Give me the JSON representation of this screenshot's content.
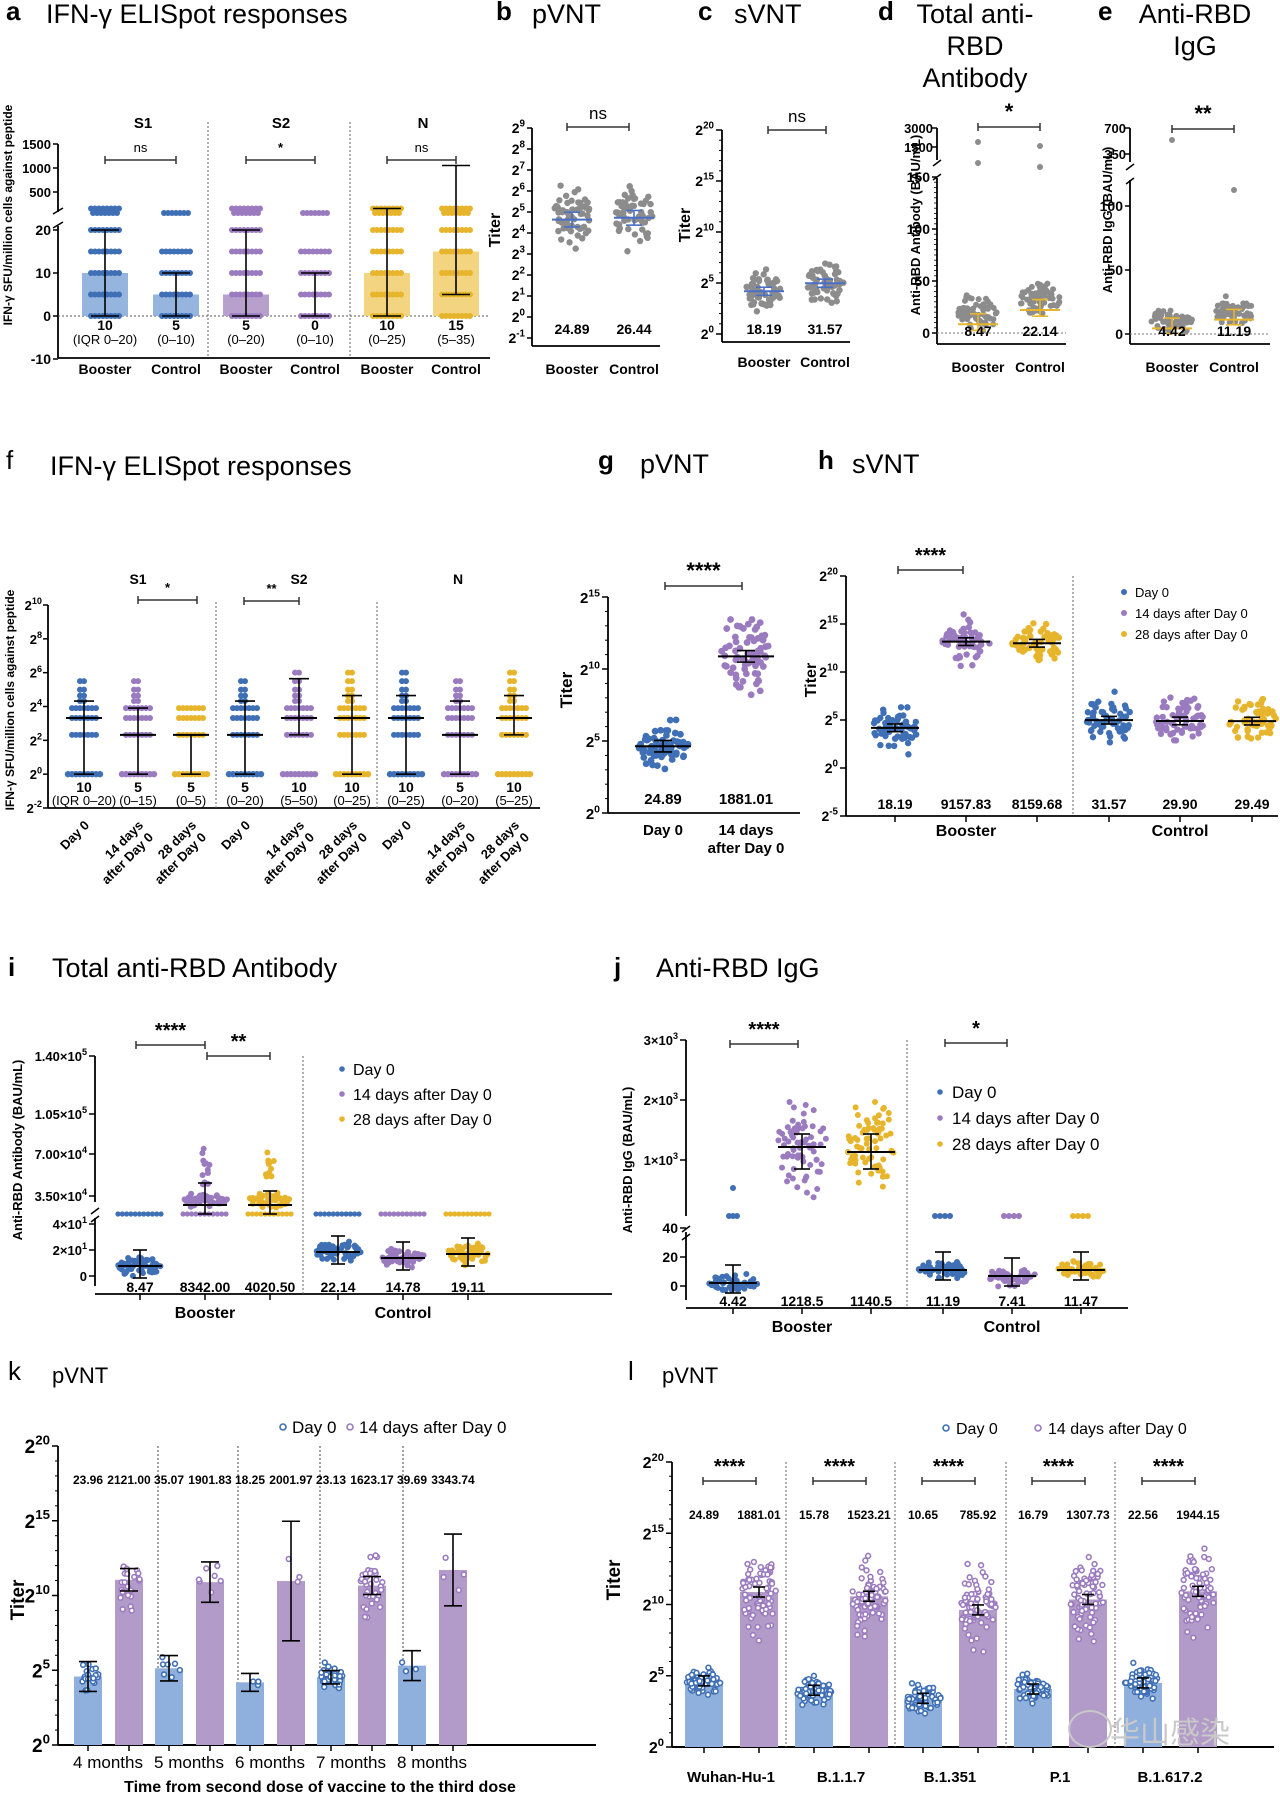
{
  "figure": {
    "colors": {
      "day0": "#3f6fb5",
      "day14": "#9b7bbf",
      "day28": "#e7b52c",
      "grey": "#8c8c8c",
      "bar_blue": "#8fb0dc",
      "bar_purple": "#b39bc9",
      "bar_yellow": "#f2d27a",
      "mean_blue": "#4a6fc4",
      "mean_yellow": "#e7b52c"
    },
    "watermark": "华山感染"
  },
  "panels": {
    "a": {
      "letter": "a",
      "title": "IFN-γ ELISpot responses"
    },
    "b": {
      "letter": "b",
      "title": "pVNT"
    },
    "c": {
      "letter": "c",
      "title": "sVNT"
    },
    "d": {
      "letter": "d",
      "title": "Total anti-RBD Antibody"
    },
    "e": {
      "letter": "e",
      "title": "Anti-RBD IgG"
    },
    "f": {
      "letter": "f",
      "title": "IFN-γ ELISpot responses"
    },
    "g": {
      "letter": "g",
      "title": "pVNT"
    },
    "h": {
      "letter": "h",
      "title": "sVNT"
    },
    "i": {
      "letter": "i",
      "title": "Total anti-RBD Antibody"
    },
    "j": {
      "letter": "j",
      "title": "Anti-RBD IgG"
    },
    "k": {
      "letter": "k",
      "title": "pVNT"
    },
    "l": {
      "letter": "l",
      "title": "pVNT"
    }
  },
  "chart_data": [
    {
      "id": "a",
      "type": "bar",
      "title": "IFN-γ ELISpot responses",
      "ylabel": "IFN-γ SFU/million cells against  peptide",
      "yticks_lower": [
        "-10",
        "0",
        "10",
        "20"
      ],
      "yticks_upper": [
        "500",
        "1000",
        "1500"
      ],
      "ylim_lower": [
        -10,
        25
      ],
      "ylim_upper": [
        0,
        1500
      ],
      "groups": [
        "S1",
        "S2",
        "N"
      ],
      "categories": [
        "Booster",
        "Control",
        "Booster",
        "Control",
        "Booster",
        "Control"
      ],
      "medians": [
        10,
        5,
        5,
        0,
        10,
        15
      ],
      "iqr": [
        [
          0,
          20
        ],
        [
          0,
          10
        ],
        [
          0,
          20
        ],
        [
          0,
          10
        ],
        [
          0,
          25
        ],
        [
          5,
          35
        ]
      ],
      "annotations": [
        "10",
        "5",
        "5",
        "0",
        "10",
        "15"
      ],
      "iqr_labels": [
        "(IQR 0–20)",
        "(0–10)",
        "(0–20)",
        "(0–10)",
        "(0–25)",
        "(5–35)"
      ],
      "significance": [
        "ns",
        "*",
        "ns"
      ],
      "series_colors": [
        "day0",
        "day0",
        "day14",
        "day14",
        "day28",
        "day28"
      ]
    },
    {
      "id": "b",
      "type": "scatter",
      "title": "pVNT",
      "ylabel": "Titer",
      "yscale": "log2",
      "ylim_exp": [
        -1,
        9
      ],
      "yticks": [
        "2^-1",
        "2^0",
        "2^1",
        "2^2",
        "2^3",
        "2^4",
        "2^5",
        "2^6",
        "2^7",
        "2^8",
        "2^9"
      ],
      "categories": [
        "Booster",
        "Control"
      ],
      "geometric_means": [
        24.89,
        26.44
      ],
      "significance": "ns"
    },
    {
      "id": "c",
      "type": "scatter",
      "title": "sVNT",
      "ylabel": "Titer",
      "yscale": "log2",
      "ylim_exp": [
        0,
        20
      ],
      "yticks": [
        "2^0",
        "2^5",
        "2^10",
        "2^15",
        "2^20"
      ],
      "categories": [
        "Booster",
        "Control"
      ],
      "geometric_means": [
        18.19,
        31.57
      ],
      "significance": "ns"
    },
    {
      "id": "d",
      "type": "scatter",
      "title": "Total anti-RBD Antibody",
      "ylabel": "Anti-RBD Antibody (BAU/mL)",
      "yticks_lower": [
        "0",
        "50",
        "100",
        "150"
      ],
      "yticks_upper": [
        "1500",
        "3000"
      ],
      "categories": [
        "Booster",
        "Control"
      ],
      "medians": [
        8.47,
        22.14
      ],
      "significance": "*"
    },
    {
      "id": "e",
      "type": "scatter",
      "title": "Anti-RBD IgG",
      "ylabel": "Anti-RBD IgG (BAU/mL)",
      "yticks_lower": [
        "0",
        "50",
        "100"
      ],
      "yticks_upper": [
        "350",
        "700"
      ],
      "categories": [
        "Booster",
        "Control"
      ],
      "medians": [
        4.42,
        11.19
      ],
      "significance": "**"
    },
    {
      "id": "f",
      "type": "scatter",
      "title": "IFN-γ ELISpot responses",
      "ylabel": "IFN-γ SFU/million cells against  peptide",
      "yscale": "log2",
      "ylim_exp": [
        -2,
        10
      ],
      "yticks": [
        "2^-2",
        "2^0",
        "2^2",
        "2^4",
        "2^6",
        "2^8",
        "2^10"
      ],
      "groups": [
        "S1",
        "S2",
        "N"
      ],
      "categories": [
        "Day 0",
        "14 days after Day 0",
        "28 days after Day 0",
        "Day 0",
        "14 days after Day 0",
        "28 days after Day 0",
        "Day 0",
        "14 days after Day 0",
        "28 days after Day 0"
      ],
      "medians": [
        10,
        5,
        5,
        5,
        10,
        10,
        10,
        5,
        10
      ],
      "annotations": [
        "10",
        "5",
        "5",
        "5",
        "10",
        "10",
        "10",
        "5",
        "10"
      ],
      "iqr_labels": [
        "(IQR 0–20)",
        "(0–15)",
        "(0–5)",
        "(0–20)",
        "(5–50)",
        "(0–25)",
        "(0–25)",
        "(0–20)",
        "(5–25)"
      ],
      "iqr": [
        [
          0,
          20
        ],
        [
          0,
          15
        ],
        [
          0,
          5
        ],
        [
          0,
          20
        ],
        [
          5,
          50
        ],
        [
          0,
          25
        ],
        [
          0,
          25
        ],
        [
          0,
          20
        ],
        [
          5,
          25
        ]
      ],
      "significance": [
        {
          "group": "S1",
          "between": [
            "14 days after Day 0",
            "28 days after Day 0"
          ],
          "label": "*"
        },
        {
          "group": "S2",
          "between": [
            "Day 0",
            "14 days after Day 0"
          ],
          "label": "**"
        }
      ]
    },
    {
      "id": "g",
      "type": "scatter",
      "title": "pVNT",
      "ylabel": "Titer",
      "yscale": "log2",
      "ylim_exp": [
        0,
        15
      ],
      "yticks": [
        "2^0",
        "2^5",
        "2^10",
        "2^15"
      ],
      "categories": [
        "Day 0",
        "14 days after Day 0"
      ],
      "geometric_means": [
        24.89,
        1881.01
      ],
      "significance": "****"
    },
    {
      "id": "h",
      "type": "scatter",
      "title": "sVNT",
      "ylabel": "Titer",
      "yscale": "log2",
      "ylim_exp": [
        -5,
        20
      ],
      "yticks": [
        "2^-5",
        "2^0",
        "2^5",
        "2^10",
        "2^15",
        "2^20"
      ],
      "groups": [
        "Booster",
        "Control"
      ],
      "legend": [
        "Day 0",
        "14 days after Day 0",
        "28 days after Day 0"
      ],
      "legend_position": "top-right",
      "series": [
        {
          "name": "Day 0",
          "booster": 18.19,
          "control": 31.57
        },
        {
          "name": "14 days after Day 0",
          "booster": 9157.83,
          "control": 29.9
        },
        {
          "name": "28 days after Day 0",
          "booster": 8159.68,
          "control": 29.49
        }
      ],
      "value_labels": [
        "18.19",
        "9157.83",
        "8159.68",
        "31.57",
        "29.90",
        "29.49"
      ],
      "significance": "****"
    },
    {
      "id": "i",
      "type": "scatter",
      "title": "Total anti-RBD Antibody",
      "ylabel": "Anti-RBD Antibody (BAU/mL)",
      "yticks_lower": [
        "0",
        "2x10^1",
        "4x10^1"
      ],
      "yticks_upper": [
        "3.50x10^4",
        "7.00x10^4",
        "1.05x10^5",
        "1.40x10^5"
      ],
      "groups": [
        "Booster",
        "Control"
      ],
      "legend": [
        "Day 0",
        "14 days after Day 0",
        "28 days after Day 0"
      ],
      "legend_position": "top-right",
      "value_labels": [
        "8.47",
        "8342.00",
        "4020.50",
        "22.14",
        "14.78",
        "19.11"
      ],
      "significance": [
        "****",
        "**"
      ]
    },
    {
      "id": "j",
      "type": "scatter",
      "title": "Anti-RBD IgG",
      "ylabel": "Anti-RBD IgG (BAU/mL)",
      "yticks_lower": [
        "0",
        "20",
        "40"
      ],
      "yticks_upper": [
        "1x10^3",
        "2x10^3",
        "3x10^3"
      ],
      "groups": [
        "Booster",
        "Control"
      ],
      "legend": [
        "Day 0",
        "14 days after Day 0",
        "28 days after Day 0"
      ],
      "legend_position": "top-right",
      "value_labels": [
        "4.42",
        "1218.5",
        "1140.5",
        "11.19",
        "7.41",
        "11.47"
      ],
      "significance": [
        "****",
        "*"
      ]
    },
    {
      "id": "k",
      "type": "bar",
      "title": "pVNT",
      "ylabel": "Titer",
      "xlabel": "Time from second dose of vaccine to the third dose",
      "yscale": "log2",
      "ylim_exp": [
        0,
        20
      ],
      "yticks": [
        "2^0",
        "2^5",
        "2^10",
        "2^15",
        "2^20"
      ],
      "categories": [
        "4 months",
        "5 months",
        "6 months",
        "7 months",
        "8 months"
      ],
      "legend": [
        "Day 0",
        "14 days after Day 0"
      ],
      "legend_position": "top-right",
      "series": [
        {
          "name": "Day 0",
          "values": [
            23.96,
            35.07,
            18.25,
            23.13,
            39.69
          ]
        },
        {
          "name": "14 days after Day 0",
          "values": [
            2121.0,
            1901.83,
            2001.97,
            1623.17,
            3343.74
          ]
        }
      ],
      "value_labels": [
        "23.96",
        "2121.00",
        "35.07",
        "1901.83",
        "18.25",
        "2001.97",
        "23.13",
        "1623.17",
        "39.69",
        "3343.74"
      ]
    },
    {
      "id": "l",
      "type": "bar",
      "title": "pVNT",
      "ylabel": "Titer",
      "yscale": "log2",
      "ylim_exp": [
        0,
        20
      ],
      "yticks": [
        "2^0",
        "2^5",
        "2^10",
        "2^15",
        "2^20"
      ],
      "categories": [
        "Wuhan-Hu-1",
        "B.1.1.7",
        "B.1.351",
        "P.1",
        "B.1.617.2"
      ],
      "legend": [
        "Day 0",
        "14 days after Day 0"
      ],
      "legend_position": "top-right",
      "series": [
        {
          "name": "Day 0",
          "values": [
            24.89,
            15.78,
            10.65,
            16.79,
            22.56
          ]
        },
        {
          "name": "14 days after Day 0",
          "values": [
            1881.01,
            1523.21,
            785.92,
            1307.73,
            1944.15
          ]
        }
      ],
      "value_labels": [
        "24.89",
        "1881.01",
        "15.78",
        "1523.21",
        "10.65",
        "785.92",
        "16.79",
        "1307.73",
        "22.56",
        "1944.15"
      ],
      "significance": [
        "****",
        "****",
        "****",
        "****",
        "****"
      ]
    }
  ]
}
